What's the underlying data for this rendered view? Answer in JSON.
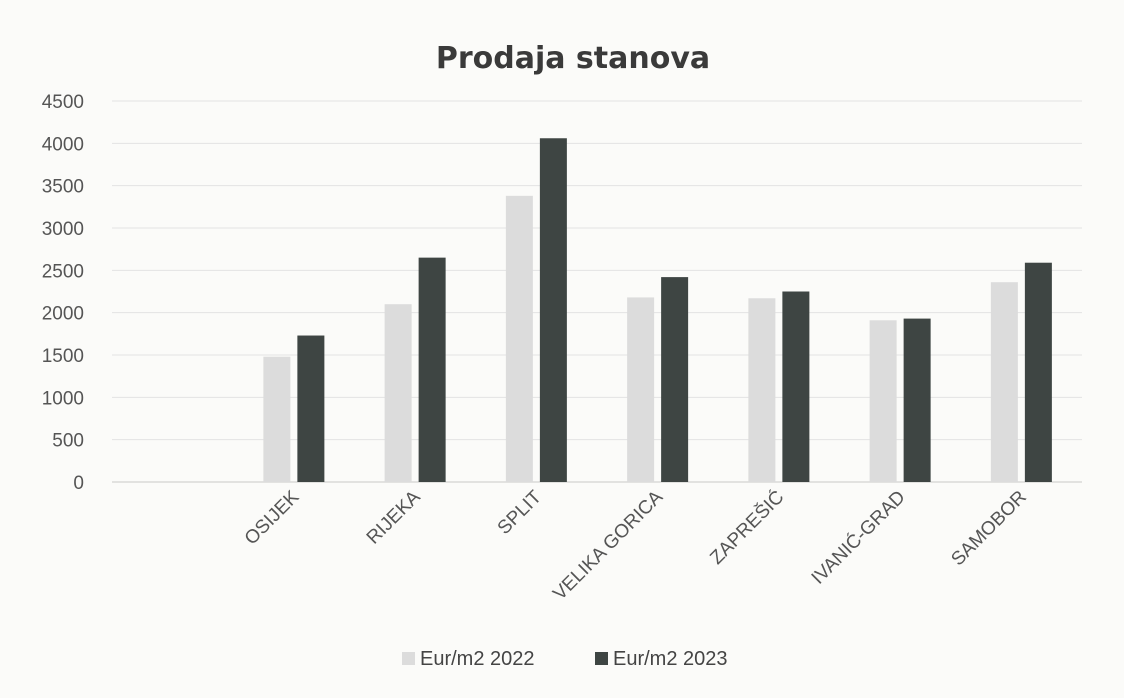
{
  "chart_data": {
    "type": "bar",
    "title": "Prodaja stanova",
    "xlabel": "",
    "ylabel": "",
    "categories": [
      "",
      "OSIJEK",
      "RIJEKA",
      "SPLIT",
      "VELIKA GORICA",
      "ZAPREŠIĆ",
      "IVANIĆ-GRAD",
      "SAMOBOR"
    ],
    "series": [
      {
        "name": "Eur/m2 2022",
        "color": "#dcdcdc",
        "values": [
          null,
          1480,
          2100,
          3380,
          2180,
          2170,
          1910,
          2360
        ]
      },
      {
        "name": "Eur/m2 2023",
        "color": "#3e4543",
        "values": [
          null,
          1730,
          2650,
          4060,
          2420,
          2250,
          1930,
          2590
        ]
      }
    ],
    "ylim": [
      0,
      4500
    ],
    "yticks": [
      "0",
      "500",
      "1000",
      "1500",
      "2000",
      "2500",
      "3000",
      "3500",
      "4000",
      "4500"
    ],
    "grid": true,
    "legend": "bottom"
  }
}
